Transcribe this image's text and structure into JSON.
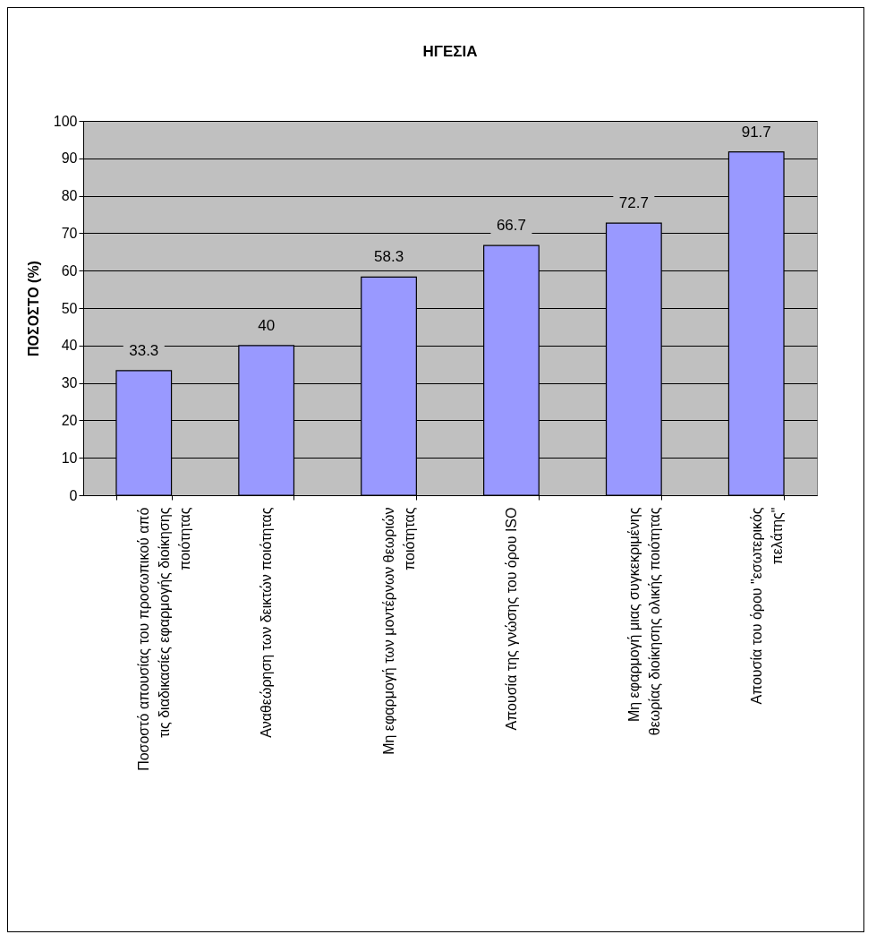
{
  "chart_data": {
    "type": "bar",
    "title": "ΗΓΕΣΙΑ",
    "ylabel": "ΠΟΣΟΣΤΟ (%)",
    "categories": [
      "Ποσοστό απουσίας του προσωπικού από τις διαδικασίες εφαρμογής διοίκησης ποιότητας",
      "Αναθεώρηση των δεικτών ποιότητας",
      "Μη εφαρμογή των μοντέρνων θεωριών ποιότητας",
      "Απουσία της γνώσης του όρου ISO",
      "Μη εφαρμογή μιας συγκεκριμένης θεωρίας διοίκησης ολικής ποιότητας",
      "Απουσία του όρου \"εσωτερικός πελάτης\""
    ],
    "values": [
      33.3,
      40,
      58.3,
      66.7,
      72.7,
      91.7
    ],
    "color": "#9999ff",
    "ylim": [
      0,
      100
    ],
    "yticks": [
      0,
      10,
      20,
      30,
      40,
      50,
      60,
      70,
      80,
      90,
      100
    ],
    "grid": "y",
    "data_labels": true
  }
}
